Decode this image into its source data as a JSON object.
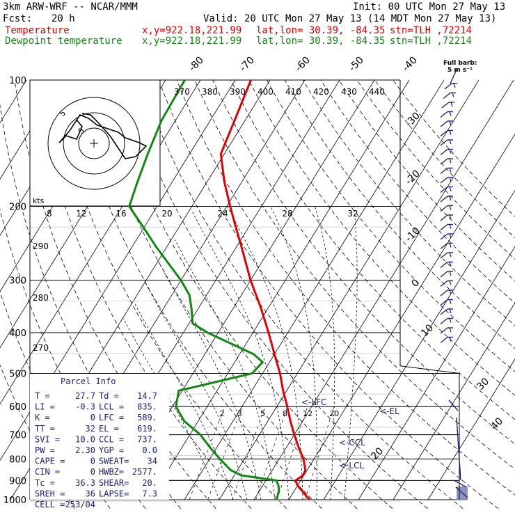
{
  "header": {
    "model": "3km ARW-WRF -- NCAR/MMM",
    "init": "Init: 00 UTC Mon 27 May 13",
    "fcst_label": "Fcst:",
    "fcst_value": "20 h",
    "valid": "Valid: 20 UTC Mon 27 May 13 (14 MDT Mon 27 May 13)",
    "temp_label": "Temperature",
    "temp_xy": "x,y=922.18,221.99",
    "temp_latlon": "lat,lon= 30.39, -84.35",
    "temp_stn": "stn=TLH ,72214",
    "dew_label": "Dewpoint temperature",
    "dew_xy": "x,y=922.18,221.99",
    "dew_latlon": "lat,lon= 30.39, -84.35",
    "dew_stn": "stn=TLH ,72214"
  },
  "barb_legend": {
    "title": "Full barb:",
    "value": "5 m s⁻¹"
  },
  "colors": {
    "temperature": "#e00000",
    "dewpoint": "#118811",
    "parcel": "#1a237e",
    "wind": "#1a237e"
  },
  "chart_data": {
    "type": "line",
    "pressure_levels": [
      100,
      200,
      300,
      400,
      500,
      600,
      700,
      800,
      900,
      1000
    ],
    "isotherm_labels": [
      "-80",
      "-70",
      "-60",
      "-50",
      "-40",
      "-30",
      "-20",
      "-10",
      "0",
      "10",
      "20",
      "30",
      "40"
    ],
    "isentrope_labels": [
      "370",
      "380",
      "390",
      "400",
      "410",
      "420",
      "430",
      "440"
    ],
    "adiabat_labels": [
      "290",
      "280",
      "270"
    ],
    "mixing_ratio_labels": [
      "2",
      "3",
      "5",
      "8",
      "12",
      "20"
    ],
    "hodograph": {
      "units": "kts",
      "ticks": [
        "8",
        "12",
        "16",
        "20",
        "24",
        "28",
        "32"
      ],
      "ring_labels": [
        "5",
        "5"
      ]
    },
    "levels_markers": [
      "<-LFC",
      "<-EL",
      "<-CCL",
      "<-LCL"
    ],
    "series": [
      {
        "name": "Temperature",
        "points": [
          [
            1000,
            26.0
          ],
          [
            975,
            24.0
          ],
          [
            950,
            22.0
          ],
          [
            925,
            20.0
          ],
          [
            900,
            18.5
          ],
          [
            875,
            19.8
          ],
          [
            850,
            19.5
          ],
          [
            800,
            17.0
          ],
          [
            750,
            13.5
          ],
          [
            700,
            10.0
          ],
          [
            650,
            6.5
          ],
          [
            600,
            3.0
          ],
          [
            550,
            -1.0
          ],
          [
            500,
            -5.0
          ],
          [
            450,
            -10.0
          ],
          [
            400,
            -15.5
          ],
          [
            350,
            -22.0
          ],
          [
            300,
            -30.0
          ],
          [
            250,
            -38.5
          ],
          [
            225,
            -43.5
          ],
          [
            200,
            -49.0
          ],
          [
            175,
            -55.0
          ],
          [
            150,
            -61.0
          ],
          [
            125,
            -63.0
          ],
          [
            100,
            -65.5
          ]
        ]
      },
      {
        "name": "Dewpoint temperature",
        "points": [
          [
            1000,
            16.5
          ],
          [
            975,
            16.0
          ],
          [
            950,
            15.5
          ],
          [
            925,
            14.5
          ],
          [
            900,
            13.0
          ],
          [
            875,
            2.0
          ],
          [
            850,
            -2.0
          ],
          [
            800,
            -7.0
          ],
          [
            750,
            -12.0
          ],
          [
            700,
            -17.0
          ],
          [
            650,
            -24.0
          ],
          [
            600,
            -29.0
          ],
          [
            550,
            -31.0
          ],
          [
            500,
            -13.0
          ],
          [
            470,
            -12.0
          ],
          [
            450,
            -16.0
          ],
          [
            400,
            -33.0
          ],
          [
            380,
            -39.0
          ],
          [
            350,
            -42.0
          ],
          [
            325,
            -45.0
          ],
          [
            300,
            -50.0
          ],
          [
            250,
            -63.0
          ],
          [
            225,
            -70.0
          ],
          [
            200,
            -78.0
          ],
          [
            175,
            -80.0
          ],
          [
            150,
            -82.0
          ],
          [
            125,
            -84.0
          ],
          [
            100,
            -84.5
          ]
        ]
      }
    ]
  },
  "parcel_info": {
    "title": "Parcel Info",
    "rows": [
      [
        "T  =",
        "27.7",
        "Td  =",
        "14.7"
      ],
      [
        "LI =",
        "-0.3",
        "LCL =",
        "835."
      ],
      [
        "K  =",
        "0",
        "LFC =",
        "589."
      ],
      [
        "TT =",
        "32",
        "EL  =",
        "619."
      ],
      [
        "SVI =",
        "10.0",
        "CCL =",
        "737."
      ],
      [
        "PW =",
        "2.30",
        "YGP =",
        "0.0"
      ],
      [
        "CAPE =",
        "0",
        "SWEAT=",
        "34"
      ],
      [
        "CIN =",
        "0",
        "HWBZ=",
        "2577."
      ],
      [
        "Tc =",
        "36.3",
        "SHEAR=",
        "20."
      ],
      [
        "SREH =",
        "36",
        "LAPSE=",
        "7.3"
      ],
      [
        "CELL =",
        "253/04",
        "",
        ""
      ]
    ]
  }
}
